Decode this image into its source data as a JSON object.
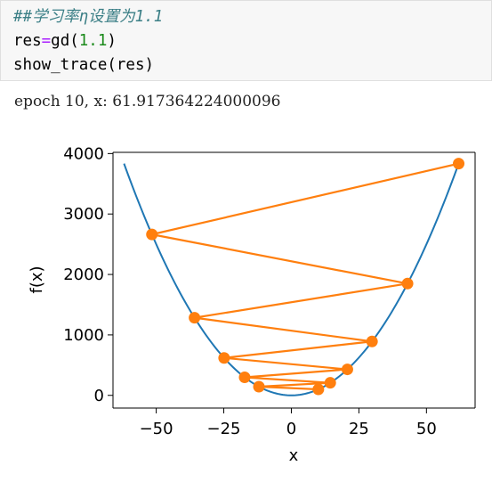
{
  "code_cell": {
    "comment": "##学习率η设置为1.1",
    "line2_var": "res",
    "line2_op": "=",
    "line2_func": "gd(",
    "line2_num": "1.1",
    "line2_close": ")",
    "line3": "show_trace(res)"
  },
  "output": {
    "text": "epoch 10, x: 61.917364224000096"
  },
  "chart_data": {
    "type": "line",
    "xlabel": "x",
    "ylabel": "f(x)",
    "xlim": [
      -66,
      68
    ],
    "ylim": [
      -210,
      4020
    ],
    "xticks": [
      -50,
      -25,
      0,
      25,
      50
    ],
    "xtick_labels": [
      "−50",
      "−25",
      "0",
      "25",
      "50"
    ],
    "yticks": [
      0,
      1000,
      2000,
      3000,
      4000
    ],
    "ytick_labels": [
      "0",
      "1000",
      "2000",
      "3000",
      "4000"
    ],
    "curve": {
      "function": "x^2",
      "x_range": [
        -61.917364224,
        61.917364224
      ],
      "color": "#1f77b4"
    },
    "trace": {
      "color": "#ff7f0e",
      "x": [
        10,
        -12,
        14.4,
        -17.28,
        20.736,
        -24.8832,
        29.85984,
        -35.831808,
        42.9981696,
        -51.59780352,
        61.917364224
      ]
    },
    "grid": false
  }
}
